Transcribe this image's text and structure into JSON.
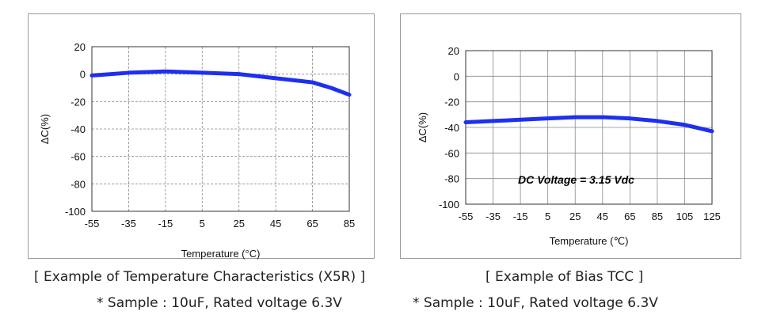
{
  "colors": {
    "line": "#1f2ff0",
    "frame": "#9a9a9a",
    "grid": "#8a8a8a"
  },
  "chart_data": [
    {
      "type": "line",
      "title": "",
      "xlabel": "Temperature (°C)",
      "ylabel": "ΔC(%)",
      "x_ticks": [
        "-55",
        "-35",
        "-15",
        "5",
        "25",
        "45",
        "65",
        "85"
      ],
      "y_ticks": [
        "20",
        "0",
        "-20",
        "-40",
        "-60",
        "-80",
        "-100"
      ],
      "xlim": [
        -55,
        85
      ],
      "ylim": [
        -100,
        20
      ],
      "grid": "dashed",
      "series": [
        {
          "x": [
            -55,
            -35,
            -15,
            5,
            25,
            45,
            65,
            75,
            85
          ],
          "y": [
            -1,
            1,
            2,
            1,
            0,
            -3,
            -6,
            -10,
            -15
          ]
        }
      ]
    },
    {
      "type": "line",
      "title": "",
      "annotation": "DC Voltage = 3.15 Vdc",
      "xlabel": "Temperature (℃)",
      "ylabel": "ΔC(%)",
      "x_ticks": [
        "-55",
        "-35",
        "-15",
        "5",
        "25",
        "45",
        "65",
        "85",
        "105",
        "125"
      ],
      "y_ticks": [
        "20",
        "0",
        "-20",
        "-40",
        "-60",
        "-80",
        "-100"
      ],
      "xlim": [
        -55,
        125
      ],
      "ylim": [
        -100,
        20
      ],
      "grid": "solid",
      "series": [
        {
          "x": [
            -55,
            -35,
            -15,
            5,
            25,
            45,
            65,
            85,
            105,
            125
          ],
          "y": [
            -36,
            -35,
            -34,
            -33,
            -32,
            -32,
            -33,
            -35,
            -38,
            -43
          ]
        }
      ]
    }
  ],
  "captions": {
    "left_title": "[ Example of Temperature Characteristics (X5R) ]",
    "left_sample": "* Sample : 10uF, Rated voltage 6.3V",
    "right_title": "[ Example of Bias TCC ]",
    "right_sample": "* Sample : 10uF, Rated voltage 6.3V"
  }
}
